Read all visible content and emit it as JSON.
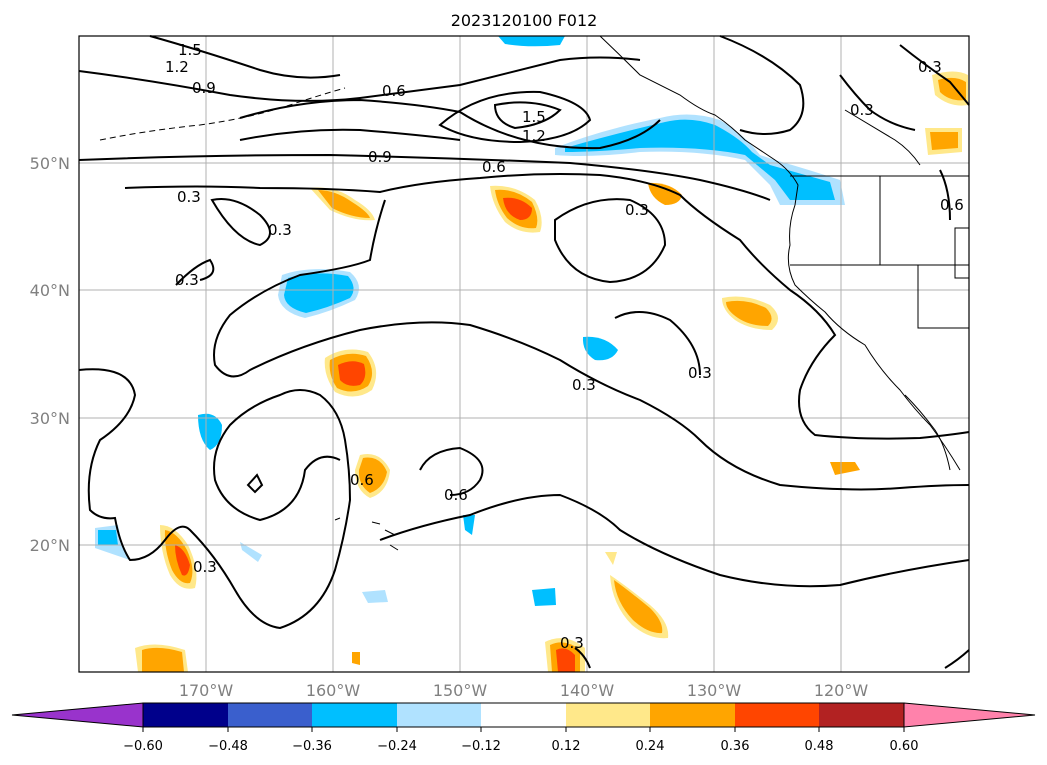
{
  "title": "2023120100 F012",
  "map": {
    "lon_range": [
      -180,
      -110
    ],
    "lat_range": [
      10,
      60
    ],
    "latitude_ticks": [
      {
        "value": 20,
        "label": "20°N"
      },
      {
        "value": 30,
        "label": "30°N"
      },
      {
        "value": 40,
        "label": "40°N"
      },
      {
        "value": 50,
        "label": "50°N"
      }
    ],
    "longitude_ticks": [
      {
        "value": -170,
        "label": "170°W"
      },
      {
        "value": -160,
        "label": "160°W"
      },
      {
        "value": -150,
        "label": "150°W"
      },
      {
        "value": -140,
        "label": "140°W"
      },
      {
        "value": -130,
        "label": "130°W"
      },
      {
        "value": -120,
        "label": "120°W"
      }
    ],
    "gridlines": true,
    "contour_labels": [
      "1.5",
      "1.2",
      "0.9",
      "0.6",
      "1.5",
      "1.2",
      "0.9",
      "0.6",
      "0.3",
      "0.3",
      "0.3",
      "0.3",
      "0.3",
      "0.3",
      "0.3",
      "0.6",
      "0.6",
      "0.3",
      "0.3",
      "0.3",
      "0.6"
    ]
  },
  "colorbar": {
    "tick_labels": [
      "−0.60",
      "−0.48",
      "−0.36",
      "−0.24",
      "−0.12",
      "0.12",
      "0.24",
      "0.36",
      "0.48",
      "0.60"
    ],
    "colors": [
      "#9933cc",
      "#00008b",
      "#3a5fcd",
      "#00bfff",
      "#b0e2ff",
      "#ffffff",
      "#ffe88a",
      "#ffa500",
      "#ff4500",
      "#b22222",
      "#ff82ab"
    ],
    "extend": "both"
  }
}
